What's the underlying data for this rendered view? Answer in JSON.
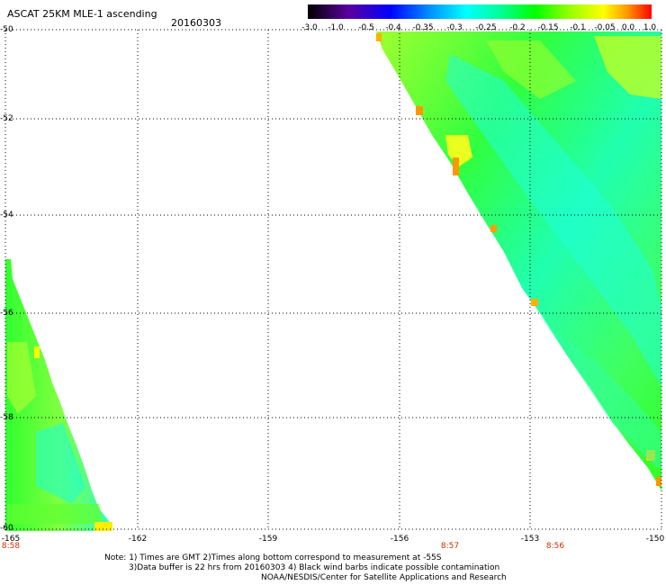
{
  "header": {
    "title": "ASCAT 25KM MLE-1 ascending",
    "date": "20160303"
  },
  "colorbar": {
    "labels": [
      "-3.0",
      "-1.0",
      "-0.5",
      "-0.4",
      "-0.35",
      "-0.3",
      "-0.25",
      "-0.2",
      "-0.15",
      "-0.1",
      "-0.05",
      "0.0",
      "1.0"
    ],
    "colors": [
      "#000000",
      "#5a00a0",
      "#0000ff",
      "#0096ff",
      "#00ffff",
      "#00ff96",
      "#00ff00",
      "#96ff00",
      "#ffff00",
      "#ff9600",
      "#ff0000"
    ]
  },
  "map": {
    "lat_labels": [
      "-50",
      "-52",
      "-54",
      "-56",
      "-58",
      "-60"
    ],
    "lon_labels": [
      "-165",
      "-162",
      "-159",
      "-156",
      "-153",
      "-150"
    ],
    "time_labels": [
      {
        "text": "8:58",
        "lon": "-165"
      },
      {
        "text": "8:57",
        "lon": "-155"
      },
      {
        "text": "8:56",
        "lon": "-152"
      }
    ],
    "grid": "dotted"
  },
  "footer": {
    "note1": "Note: 1) Times are GMT 2)Times along bottom correspond to measurement at -55S",
    "note2": "3)Data buffer is 22 hrs from 20160303 4) Black wind barbs indicate possible contamination",
    "note3": "NOAA/NESDIS/Center for Satellite Applications and Research"
  }
}
